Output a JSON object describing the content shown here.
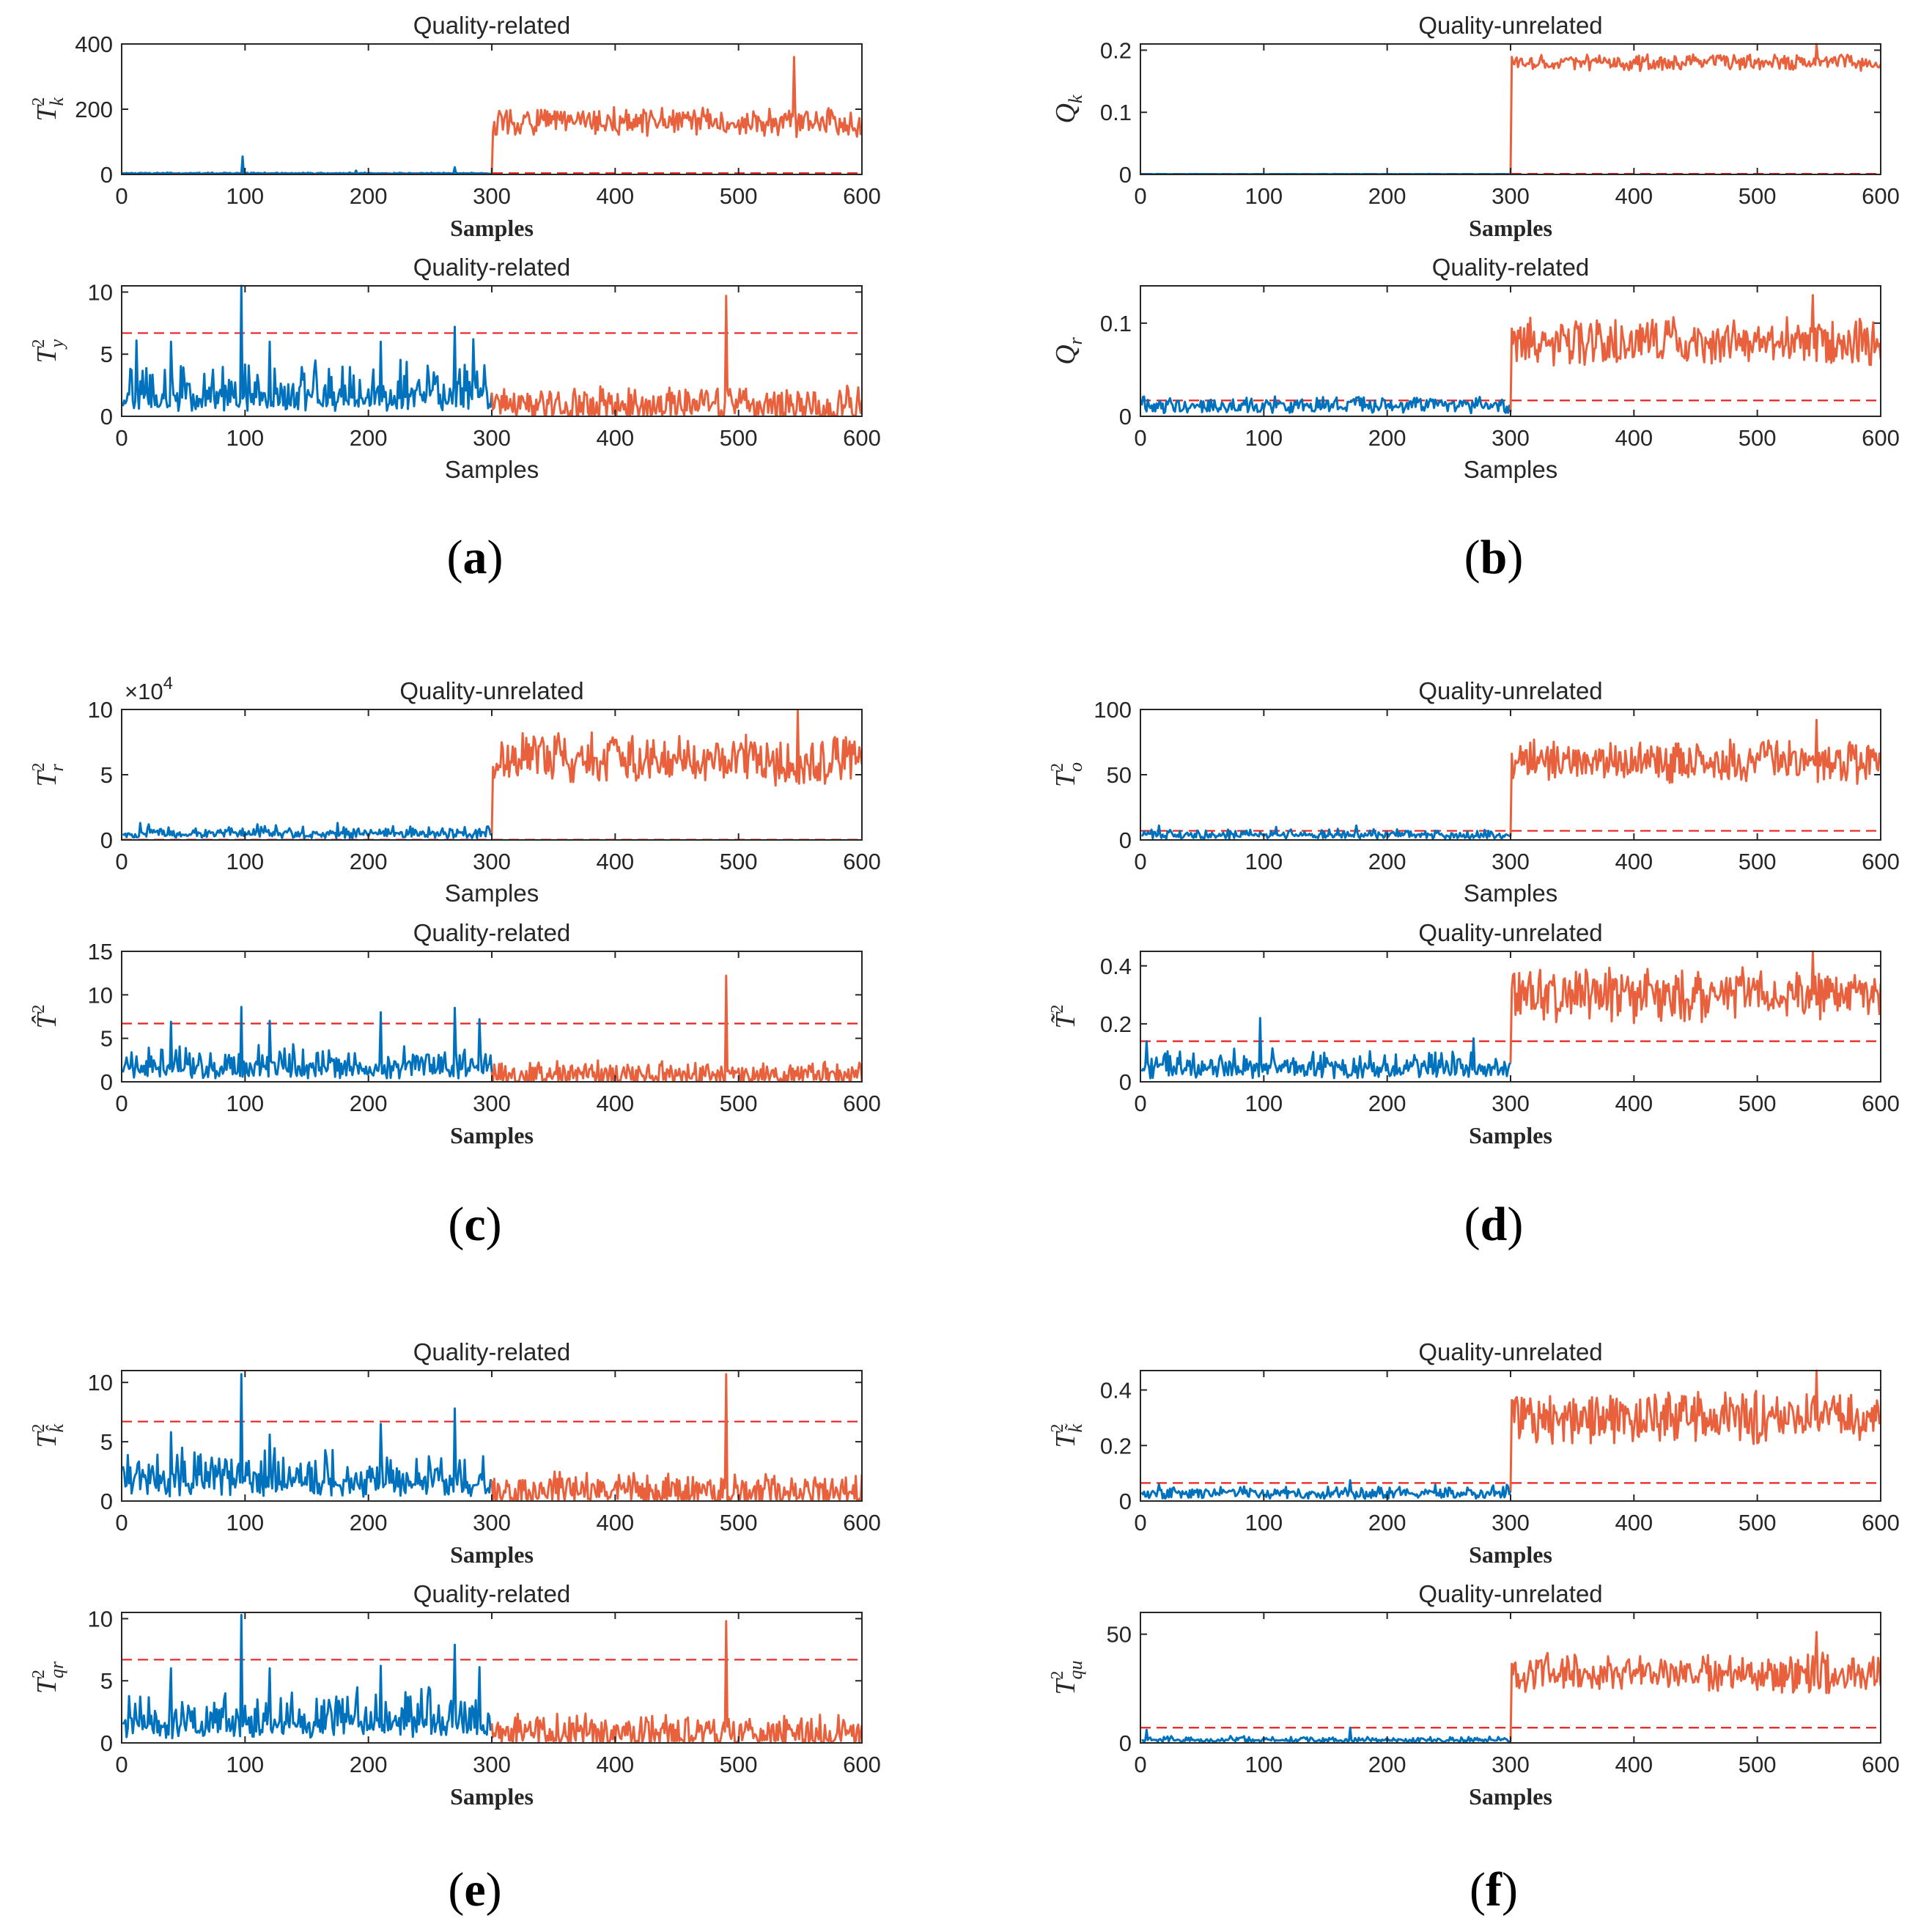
{
  "colors": {
    "normal": "#0072BD",
    "fault": "#E8603C",
    "limit": "#E8221E",
    "axis": "#262626"
  },
  "panels": [
    {
      "label_text": "(a)",
      "label_open": "(",
      "label_letter": "a",
      "label_close": ")"
    },
    {
      "label_text": "(b)",
      "label_open": "(",
      "label_letter": "b",
      "label_close": ")"
    },
    {
      "label_text": "(c)",
      "label_open": "(",
      "label_letter": "c",
      "label_close": ")"
    },
    {
      "label_text": "(d)",
      "label_open": "(",
      "label_letter": "d",
      "label_close": ")"
    },
    {
      "label_text": "(e)",
      "label_open": "(",
      "label_letter": "e",
      "label_close": ")"
    },
    {
      "label_text": "(f)",
      "label_open": "(",
      "label_letter": "f",
      "label_close": ")"
    }
  ],
  "chart_data": [
    {
      "id": "a-top",
      "type": "line",
      "title": "Quality-related",
      "xlabel": "Samples",
      "xlabel_style": "serif",
      "ylabel_base": "T",
      "ylabel_sup": "2",
      "ylabel_sub": "k",
      "xlim": [
        0,
        600
      ],
      "xticks": [
        0,
        100,
        200,
        300,
        400,
        500,
        600
      ],
      "ylim": [
        0,
        400
      ],
      "yticks": [
        0,
        200,
        400
      ],
      "ytick_labels": [
        "0",
        "200",
        "400"
      ],
      "control_limit": 4,
      "normal": {
        "samples": "1-300",
        "base": 3,
        "noise": 2,
        "spikes": [
          [
            98,
            55
          ],
          [
            190,
            12
          ],
          [
            270,
            22
          ]
        ]
      },
      "fault": {
        "samples": "301-600",
        "base": 160,
        "noise": 70,
        "peak": [
          545,
          360
        ]
      },
      "fault_start": 300
    },
    {
      "id": "a-bottom",
      "type": "line",
      "title": "Quality-unrelated",
      "xlabel": "Samples",
      "xlabel_style": "serif",
      "ylabel_base": "Q",
      "ylabel_sup": "",
      "ylabel_sub": "k",
      "xlim": [
        0,
        600
      ],
      "xticks": [
        0,
        100,
        200,
        300,
        400,
        500,
        600
      ],
      "ylim": [
        0,
        0.21
      ],
      "yticks": [
        0,
        0.1,
        0.2
      ],
      "ytick_labels": [
        "0",
        "0.1",
        "0.2"
      ],
      "control_limit": 0.001,
      "normal": {
        "samples": "1-300",
        "base": 0.0004,
        "noise": 0.0003,
        "spikes": []
      },
      "fault": {
        "samples": "301-600",
        "base": 0.18,
        "noise": 0.02,
        "peak": [
          548,
          0.21
        ]
      },
      "fault_start": 300
    },
    {
      "id": "b-top",
      "type": "line",
      "title": "Quality-related",
      "xlabel": "Samples",
      "xlabel_style": "sans",
      "ylabel_base": "T",
      "ylabel_sup": "2",
      "ylabel_sub": "y",
      "xlim": [
        0,
        600
      ],
      "xticks": [
        0,
        100,
        200,
        300,
        400,
        500,
        600
      ],
      "ylim": [
        0,
        10.5
      ],
      "yticks": [
        0,
        5,
        10
      ],
      "ytick_labels": [
        "0",
        "5",
        "10"
      ],
      "control_limit": 6.7,
      "normal": {
        "samples": "1-300",
        "base": 1.2,
        "noise": 3,
        "spikes": [
          [
            97,
            10.5
          ],
          [
            270,
            7.2
          ],
          [
            12,
            6.1
          ],
          [
            40,
            6.0
          ],
          [
            120,
            6.0
          ],
          [
            210,
            6.0
          ],
          [
            285,
            6.2
          ]
        ]
      },
      "fault": {
        "samples": "301-600",
        "base": 0.8,
        "noise": 2.5,
        "peak": [
          490,
          9.7
        ]
      },
      "fault_start": 300
    },
    {
      "id": "b-bottom",
      "type": "line",
      "title": "Quality-related",
      "xlabel": "Samples",
      "xlabel_style": "sans",
      "ylabel_base": "Q",
      "ylabel_sup": "",
      "ylabel_sub": "r",
      "xlim": [
        0,
        600
      ],
      "xticks": [
        0,
        100,
        200,
        300,
        400,
        500,
        600
      ],
      "ylim": [
        0,
        0.14
      ],
      "yticks": [
        0,
        0.1
      ],
      "ytick_labels": [
        "0",
        "0.1"
      ],
      "control_limit": 0.017,
      "normal": {
        "samples": "1-300",
        "base": 0.011,
        "noise": 0.006,
        "spikes": []
      },
      "fault": {
        "samples": "301-600",
        "base": 0.08,
        "noise": 0.04,
        "peak": [
          545,
          0.13
        ]
      },
      "fault_start": 300
    },
    {
      "id": "c-top",
      "type": "line",
      "title": "Quality-unrelated",
      "xlabel": "Samples",
      "xlabel_style": "sans",
      "ylabel_base": "T",
      "ylabel_sup": "2",
      "ylabel_sub": "r",
      "xlim": [
        0,
        600
      ],
      "xticks": [
        0,
        100,
        200,
        300,
        400,
        500,
        600
      ],
      "ylim": [
        0,
        10
      ],
      "yticks": [
        0,
        5,
        10
      ],
      "ytick_labels": [
        "0",
        "5",
        "10"
      ],
      "exponent_base": "×10",
      "exponent_power": "4",
      "control_limit": 0.02,
      "normal": {
        "samples": "1-300",
        "base": 0.4,
        "noise": 0.6,
        "spikes": [
          [
            15,
            1.3
          ],
          [
            110,
            1.2
          ],
          [
            175,
            1.3
          ]
        ]
      },
      "fault": {
        "samples": "301-600",
        "base": 6.2,
        "noise": 3,
        "peak": [
          548,
          9.9
        ]
      },
      "fault_start": 300
    },
    {
      "id": "c-bottom",
      "type": "line",
      "title": "Quality-unrelated",
      "xlabel": "Samples",
      "xlabel_style": "sans",
      "ylabel_base": "T",
      "ylabel_sup": "2",
      "ylabel_sub": "o",
      "xlim": [
        0,
        600
      ],
      "xticks": [
        0,
        100,
        200,
        300,
        400,
        500,
        600
      ],
      "ylim": [
        0,
        100
      ],
      "yticks": [
        0,
        50,
        100
      ],
      "ytick_labels": [
        "0",
        "50",
        "100"
      ],
      "control_limit": 7,
      "normal": {
        "samples": "1-300",
        "base": 3,
        "noise": 5,
        "spikes": [
          [
            15,
            11
          ],
          [
            110,
            10
          ],
          [
            175,
            11
          ]
        ]
      },
      "fault": {
        "samples": "301-600",
        "base": 60,
        "noise": 25,
        "peak": [
          548,
          92
        ]
      },
      "fault_start": 300
    },
    {
      "id": "d-top",
      "type": "line",
      "title": "Quality-related",
      "xlabel": "Samples",
      "xlabel_style": "serif",
      "ylabel_base": "T̂",
      "ylabel_sup": "2",
      "ylabel_sub": "",
      "xlim": [
        0,
        600
      ],
      "xticks": [
        0,
        100,
        200,
        300,
        400,
        500,
        600
      ],
      "ylim": [
        0,
        15
      ],
      "yticks": [
        0,
        5,
        10,
        15
      ],
      "ytick_labels": [
        "0",
        "5",
        "10",
        "15"
      ],
      "control_limit": 6.7,
      "normal": {
        "samples": "1-300",
        "base": 1.2,
        "noise": 3,
        "spikes": [
          [
            97,
            8.6
          ],
          [
            270,
            8.5
          ],
          [
            210,
            8.0
          ],
          [
            120,
            7.0
          ],
          [
            40,
            6.9
          ],
          [
            290,
            7.2
          ]
        ]
      },
      "fault": {
        "samples": "301-600",
        "base": 0.8,
        "noise": 2.5,
        "peak": [
          490,
          12.2
        ]
      },
      "fault_start": 300
    },
    {
      "id": "d-bottom",
      "type": "line",
      "title": "Quality-unrelated",
      "xlabel": "Samples",
      "xlabel_style": "serif",
      "ylabel_base": "T̃",
      "ylabel_sup": "2",
      "ylabel_sub": "",
      "xlim": [
        0,
        600
      ],
      "xticks": [
        0,
        100,
        200,
        300,
        400,
        500,
        600
      ],
      "ylim": [
        0,
        0.45
      ],
      "yticks": [
        0,
        0.2,
        0.4
      ],
      "ytick_labels": [
        "0",
        "0.2",
        "0.4"
      ],
      "control_limit": 0.14,
      "normal": {
        "samples": "1-300",
        "base": 0.04,
        "noise": 0.06,
        "spikes": [
          [
            97,
            0.22
          ],
          [
            270,
            0.15
          ],
          [
            5,
            0.14
          ]
        ]
      },
      "fault": {
        "samples": "301-600",
        "base": 0.3,
        "noise": 0.15,
        "peak": [
          545,
          0.45
        ]
      },
      "fault_start": 300
    },
    {
      "id": "e-top",
      "type": "line",
      "title": "Quality-related",
      "xlabel": "Samples",
      "xlabel_style": "serif",
      "ylabel_base": "T",
      "ylabel_sup": "2",
      "ylabel_sub": "k̂",
      "xlim": [
        0,
        600
      ],
      "xticks": [
        0,
        100,
        200,
        300,
        400,
        500,
        600
      ],
      "ylim": [
        0,
        11
      ],
      "yticks": [
        0,
        5,
        10
      ],
      "ytick_labels": [
        "0",
        "5",
        "10"
      ],
      "control_limit": 6.7,
      "normal": {
        "samples": "1-300",
        "base": 1.2,
        "noise": 3,
        "spikes": [
          [
            97,
            10.7
          ],
          [
            270,
            7.8
          ],
          [
            40,
            5.8
          ],
          [
            210,
            6.5
          ],
          [
            120,
            5.6
          ]
        ]
      },
      "fault": {
        "samples": "301-600",
        "base": 0.8,
        "noise": 2.5,
        "peak": [
          490,
          10.7
        ]
      },
      "fault_start": 300
    },
    {
      "id": "e-bottom",
      "type": "line",
      "title": "Quality-unrelated",
      "xlabel": "Samples",
      "xlabel_style": "serif",
      "ylabel_base": "T",
      "ylabel_sup": "2",
      "ylabel_sub": "k̃",
      "xlim": [
        0,
        600
      ],
      "xticks": [
        0,
        100,
        200,
        300,
        400,
        500,
        600
      ],
      "ylim": [
        0,
        0.47
      ],
      "yticks": [
        0,
        0.2,
        0.4
      ],
      "ytick_labels": [
        "0",
        "0.2",
        "0.4"
      ],
      "control_limit": 0.065,
      "normal": {
        "samples": "1-300",
        "base": 0.025,
        "noise": 0.025,
        "spikes": [
          [
            170,
            0.075
          ],
          [
            15,
            0.06
          ]
        ]
      },
      "fault": {
        "samples": "301-600",
        "base": 0.3,
        "noise": 0.15,
        "peak": [
          548,
          0.47
        ]
      },
      "fault_start": 300
    },
    {
      "id": "f-top",
      "type": "line",
      "title": "Quality-related",
      "xlabel": "Samples",
      "xlabel_style": "serif",
      "ylabel_base": "T",
      "ylabel_sup": "2",
      "ylabel_sub": "qr",
      "xlim": [
        0,
        600
      ],
      "xticks": [
        0,
        100,
        200,
        300,
        400,
        500,
        600
      ],
      "ylim": [
        0,
        10.5
      ],
      "yticks": [
        0,
        5,
        10
      ],
      "ytick_labels": [
        "0",
        "5",
        "10"
      ],
      "control_limit": 6.7,
      "normal": {
        "samples": "1-300",
        "base": 1.2,
        "noise": 3,
        "spikes": [
          [
            97,
            10.3
          ],
          [
            270,
            7.9
          ],
          [
            40,
            6.0
          ],
          [
            210,
            6.2
          ],
          [
            120,
            6.0
          ],
          [
            290,
            6.1
          ]
        ]
      },
      "fault": {
        "samples": "301-600",
        "base": 0.8,
        "noise": 2.5,
        "peak": [
          490,
          9.8
        ]
      },
      "fault_start": 300
    },
    {
      "id": "f-bottom",
      "type": "line",
      "title": "Quality-unrelated",
      "xlabel": "Samples",
      "xlabel_style": "serif",
      "ylabel_base": "T",
      "ylabel_sup": "2",
      "ylabel_sub": "qu",
      "xlim": [
        0,
        600
      ],
      "xticks": [
        0,
        100,
        200,
        300,
        400,
        500,
        600
      ],
      "ylim": [
        0,
        60
      ],
      "yticks": [
        0,
        50
      ],
      "ytick_labels": [
        "0",
        "50"
      ],
      "control_limit": 7,
      "normal": {
        "samples": "1-300",
        "base": 1,
        "noise": 2,
        "spikes": [
          [
            5,
            6
          ],
          [
            170,
            7
          ]
        ]
      },
      "fault": {
        "samples": "301-600",
        "base": 32,
        "noise": 14,
        "peak": [
          548,
          51
        ]
      },
      "fault_start": 300
    }
  ]
}
